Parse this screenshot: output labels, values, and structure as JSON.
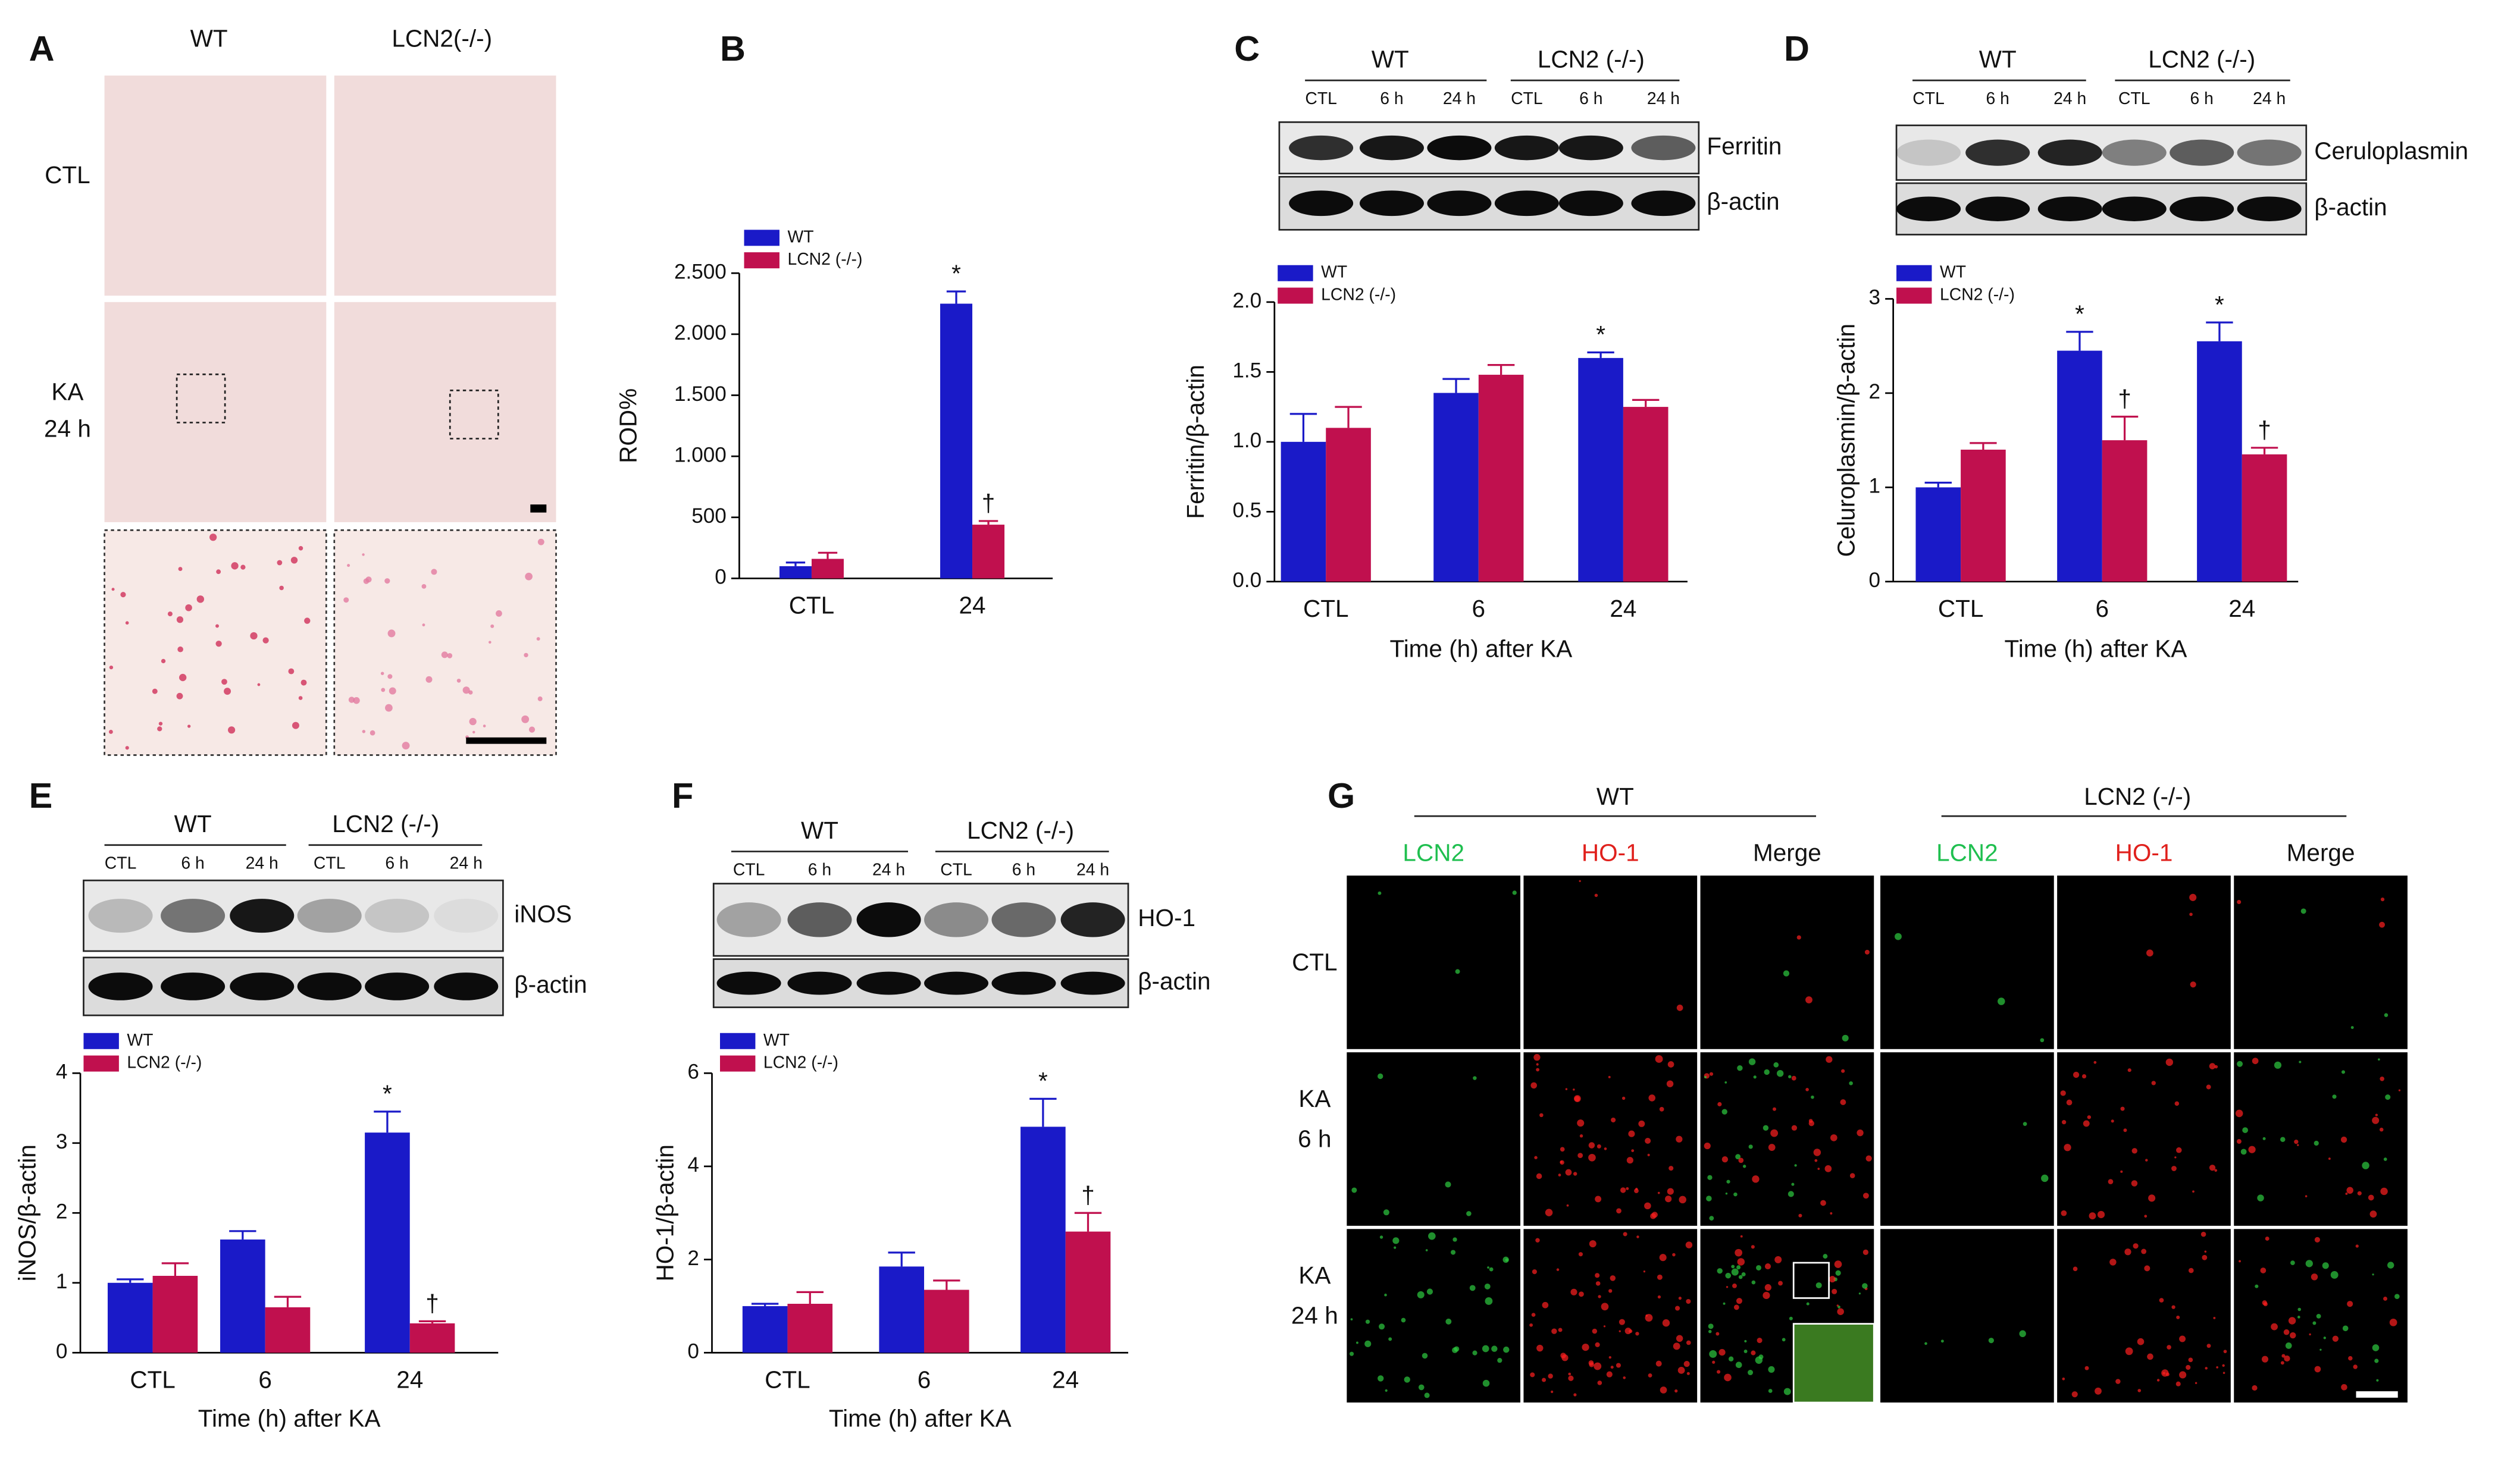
{
  "figure": {
    "panel_labels": [
      "A",
      "B",
      "C",
      "D",
      "E",
      "F",
      "G"
    ],
    "A": {
      "columns": [
        "WT",
        "LCN2(-/-)"
      ],
      "rows": [
        [
          "CTL"
        ],
        [
          "KA",
          "24 h"
        ]
      ]
    },
    "C": {
      "groups": [
        "WT",
        "LCN2 (-/-)"
      ],
      "lanes": [
        "CTL",
        "6 h",
        "24 h",
        "CTL",
        "6 h",
        "24 h"
      ],
      "bands": [
        "Ferritin",
        "β-actin"
      ]
    },
    "D": {
      "groups": [
        "WT",
        "LCN2 (-/-)"
      ],
      "lanes": [
        "CTL",
        "6 h",
        "24 h",
        "CTL",
        "6 h",
        "24 h"
      ],
      "bands": [
        "Ceruloplasmin",
        "β-actin"
      ]
    },
    "E": {
      "groups": [
        "WT",
        "LCN2 (-/-)"
      ],
      "lanes": [
        "CTL",
        "6 h",
        "24 h",
        "CTL",
        "6 h",
        "24 h"
      ],
      "bands": [
        "iNOS",
        "β-actin"
      ]
    },
    "F": {
      "groups": [
        "WT",
        "LCN2 (-/-)"
      ],
      "lanes": [
        "CTL",
        "6 h",
        "24 h",
        "CTL",
        "6 h",
        "24 h"
      ],
      "bands": [
        "HO-1",
        "β-actin"
      ]
    },
    "G": {
      "groups": [
        "WT",
        "LCN2 (-/-)"
      ],
      "columns": [
        "LCN2",
        "HO-1",
        "Merge",
        "LCN2",
        "HO-1",
        "Merge"
      ],
      "rows": [
        [
          "CTL"
        ],
        [
          "KA",
          "6 h"
        ],
        [
          "KA",
          "24 h"
        ]
      ]
    }
  },
  "chart_data": [
    {
      "type": "bar",
      "ylabel": "ROD%",
      "categories": [
        "CTL",
        "24"
      ],
      "series": [
        {
          "name": "WT",
          "color": "#1a1ac8",
          "values": [
            100,
            2250
          ],
          "errors": [
            30,
            100
          ],
          "markers": [
            null,
            "*"
          ]
        },
        {
          "name": "LCN2 (-/-)",
          "color": "#c0104e",
          "values": [
            160,
            440
          ],
          "errors": [
            50,
            30
          ],
          "markers": [
            null,
            "†"
          ]
        }
      ],
      "ylim": [
        0,
        2500
      ],
      "yticks": [
        0,
        500,
        {
          "value": 1000,
          "label": "1.000"
        },
        {
          "value": 1500,
          "label": "1.500"
        },
        {
          "value": 2000,
          "label": "2.000"
        },
        {
          "value": 2500,
          "label": "2.500"
        }
      ],
      "legend": "upper left"
    },
    {
      "type": "bar",
      "ylabel": "Ferritin/β-actin",
      "xlabel": "Time (h) after  KA",
      "categories": [
        "CTL",
        "6",
        "24"
      ],
      "series": [
        {
          "name": "WT",
          "color": "#1a1ac8",
          "values": [
            1.0,
            1.35,
            1.6
          ],
          "errors": [
            0.2,
            0.1,
            0.04
          ],
          "markers": [
            null,
            null,
            "*"
          ]
        },
        {
          "name": "LCN2 (-/-)",
          "color": "#c0104e",
          "values": [
            1.1,
            1.48,
            1.25
          ],
          "errors": [
            0.15,
            0.07,
            0.05
          ],
          "markers": [
            null,
            null,
            null
          ]
        }
      ],
      "ylim": [
        0,
        2
      ],
      "yticks": [
        {
          "value": 0,
          "label": "0.0"
        },
        0.5,
        {
          "value": 1,
          "label": "1.0"
        },
        1.5,
        {
          "value": 2,
          "label": "2.0"
        }
      ],
      "legend": "upper left"
    },
    {
      "type": "bar",
      "ylabel": "Celuroplasmin/β-actin",
      "xlabel": "Time (h) after  KA",
      "categories": [
        "CTL",
        "6",
        "24"
      ],
      "series": [
        {
          "name": "WT",
          "color": "#1a1ac8",
          "values": [
            1.0,
            2.45,
            2.55
          ],
          "errors": [
            0.05,
            0.2,
            0.2
          ],
          "markers": [
            null,
            "*",
            "*"
          ]
        },
        {
          "name": "LCN2 (-/-)",
          "color": "#c0104e",
          "values": [
            1.4,
            1.5,
            1.35
          ],
          "errors": [
            0.07,
            0.25,
            0.07
          ],
          "markers": [
            null,
            "†",
            "†"
          ]
        }
      ],
      "ylim": [
        0,
        3
      ],
      "yticks": [
        0,
        1,
        2,
        3
      ],
      "legend": "upper left"
    },
    {
      "type": "bar",
      "ylabel": "iNOS/β-actin",
      "xlabel": "Time (h) after  KA",
      "categories": [
        "CTL",
        "6",
        "24"
      ],
      "series": [
        {
          "name": "WT",
          "color": "#1a1ac8",
          "values": [
            1.0,
            1.62,
            3.15
          ],
          "errors": [
            0.05,
            0.12,
            0.3
          ],
          "markers": [
            null,
            null,
            "*"
          ]
        },
        {
          "name": "LCN2 (-/-)",
          "color": "#c0104e",
          "values": [
            1.1,
            0.65,
            0.42
          ],
          "errors": [
            0.18,
            0.15,
            0.03
          ],
          "markers": [
            null,
            null,
            "†"
          ]
        }
      ],
      "ylim": [
        0,
        4
      ],
      "yticks": [
        0,
        1,
        2,
        3,
        4
      ],
      "legend": "upper left"
    },
    {
      "type": "bar",
      "ylabel": "HO-1/β-actin",
      "xlabel": "Time (h) after  KA",
      "categories": [
        "CTL",
        "6",
        "24"
      ],
      "series": [
        {
          "name": "WT",
          "color": "#1a1ac8",
          "values": [
            1.0,
            1.85,
            4.85
          ],
          "errors": [
            0.05,
            0.3,
            0.6
          ],
          "markers": [
            null,
            null,
            "*"
          ]
        },
        {
          "name": "LCN2 (-/-)",
          "color": "#c0104e",
          "values": [
            1.05,
            1.35,
            2.6
          ],
          "errors": [
            0.25,
            0.2,
            0.4
          ],
          "markers": [
            null,
            null,
            "†"
          ]
        }
      ],
      "ylim": [
        0,
        6
      ],
      "yticks": [
        0,
        2,
        4,
        6
      ],
      "legend": "upper left"
    }
  ]
}
